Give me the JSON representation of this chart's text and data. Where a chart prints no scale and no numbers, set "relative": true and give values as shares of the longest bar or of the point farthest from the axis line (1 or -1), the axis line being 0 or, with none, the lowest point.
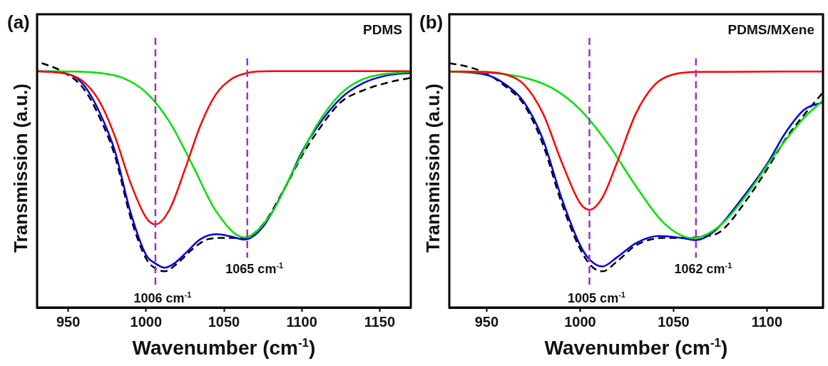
{
  "chart_data": [
    {
      "type": "line",
      "title": "(a)",
      "annotations": [
        "PDMS"
      ],
      "xlabel": "Wavenumber (cm$^{-1}$)",
      "ylabel": "Transmission (a.u.)",
      "relative": true,
      "xlim": [
        930,
        1170
      ],
      "xticks": [
        950,
        1000,
        1050,
        1100,
        1150
      ],
      "grid": false,
      "legend": false,
      "marker": "none",
      "series": [
        {
          "color": "#ff0000",
          "x": [
            930,
            950,
            960,
            970,
            980,
            990,
            1000,
            1006,
            1015,
            1025,
            1035,
            1045,
            1055,
            1065,
            1080,
            1170
          ],
          "values": [
            0.967,
            0.955,
            0.923,
            0.844,
            0.7,
            0.51,
            0.368,
            0.34,
            0.4,
            0.566,
            0.747,
            0.874,
            0.936,
            0.96,
            0.967,
            0.967
          ]
        },
        {
          "color": "#00e000",
          "x": [
            930,
            950,
            970,
            985,
            1000,
            1015,
            1030,
            1045,
            1063,
            1080,
            1095,
            1110,
            1125,
            1140,
            1170
          ],
          "values": [
            0.967,
            0.966,
            0.96,
            0.94,
            0.88,
            0.76,
            0.58,
            0.393,
            0.287,
            0.38,
            0.566,
            0.75,
            0.875,
            0.936,
            0.965
          ]
        },
        {
          "color": "#0000dd",
          "x": [
            930,
            950,
            960,
            970,
            980,
            990,
            1000,
            1006,
            1012,
            1018,
            1025,
            1035,
            1045,
            1055,
            1063,
            1075,
            1090,
            1100,
            1110,
            1125,
            1140,
            1155,
            1170
          ],
          "values": [
            0.967,
            0.955,
            0.91,
            0.8,
            0.64,
            0.39,
            0.215,
            0.18,
            0.163,
            0.18,
            0.22,
            0.28,
            0.3,
            0.29,
            0.278,
            0.33,
            0.5,
            0.636,
            0.74,
            0.856,
            0.92,
            0.95,
            0.96
          ]
        },
        {
          "color": "#000000",
          "line_style": "dashed",
          "x": [
            933,
            945,
            960,
            970,
            980,
            990,
            1000,
            1006,
            1012,
            1020,
            1030,
            1040,
            1050,
            1063,
            1075,
            1090,
            1100,
            1110,
            1125,
            1140,
            1155,
            1170
          ],
          "values": [
            1.0,
            0.97,
            0.895,
            0.78,
            0.62,
            0.37,
            0.2,
            0.16,
            0.148,
            0.18,
            0.24,
            0.28,
            0.285,
            0.285,
            0.34,
            0.5,
            0.62,
            0.72,
            0.84,
            0.89,
            0.92,
            0.94
          ]
        }
      ],
      "ref_lines": [
        {
          "axis": "x",
          "value": 1006,
          "label": "1006 cm$^{-1}$",
          "color": "#9933cc",
          "line_style": "dashed"
        },
        {
          "axis": "x",
          "value": 1065,
          "label": "1065 cm$^{-1}$",
          "color": "#9933cc",
          "line_style": "dashed"
        }
      ]
    },
    {
      "type": "line",
      "title": "(b)",
      "annotations": [
        "PDMS/MXene"
      ],
      "xlabel": "Wavenumber (cm$^{-1}$)",
      "ylabel": "Transmission (a.u.)",
      "relative": true,
      "xlim": [
        930,
        1130
      ],
      "xticks": [
        950,
        1000,
        1050,
        1100
      ],
      "grid": false,
      "legend": false,
      "marker": "none",
      "series": [
        {
          "color": "#ff0000",
          "x": [
            930,
            950,
            960,
            970,
            980,
            990,
            1000,
            1005,
            1012,
            1020,
            1030,
            1040,
            1050,
            1065,
            1130
          ],
          "values": [
            0.966,
            0.964,
            0.954,
            0.912,
            0.796,
            0.598,
            0.427,
            0.4,
            0.451,
            0.598,
            0.796,
            0.912,
            0.954,
            0.964,
            0.966
          ]
        },
        {
          "color": "#00e000",
          "x": [
            930,
            950,
            970,
            985,
            1000,
            1015,
            1030,
            1045,
            1060,
            1075,
            1090,
            1105,
            1120,
            1130
          ],
          "values": [
            0.965,
            0.961,
            0.941,
            0.898,
            0.81,
            0.669,
            0.495,
            0.344,
            0.284,
            0.336,
            0.471,
            0.635,
            0.778,
            0.847
          ]
        },
        {
          "color": "#0000dd",
          "x": [
            930,
            950,
            960,
            970,
            980,
            990,
            1000,
            1005,
            1012,
            1020,
            1030,
            1042,
            1055,
            1062,
            1072,
            1085,
            1100,
            1110,
            1120,
            1130
          ],
          "values": [
            0.966,
            0.952,
            0.913,
            0.84,
            0.69,
            0.45,
            0.255,
            0.197,
            0.168,
            0.207,
            0.264,
            0.293,
            0.284,
            0.276,
            0.313,
            0.43,
            0.587,
            0.716,
            0.81,
            0.84
          ]
        },
        {
          "color": "#000000",
          "line_style": "dashed",
          "x": [
            930,
            940,
            950,
            960,
            970,
            980,
            990,
            1000,
            1006,
            1012,
            1020,
            1030,
            1045,
            1055,
            1065,
            1075,
            1090,
            1100,
            1110,
            1120,
            1130
          ],
          "values": [
            1.0,
            0.985,
            0.957,
            0.905,
            0.83,
            0.67,
            0.43,
            0.24,
            0.17,
            0.148,
            0.19,
            0.255,
            0.285,
            0.285,
            0.29,
            0.31,
            0.45,
            0.565,
            0.69,
            0.79,
            0.88
          ]
        }
      ],
      "ref_lines": [
        {
          "axis": "x",
          "value": 1005,
          "label": "1005 cm$^{-1}$",
          "color": "#9933cc",
          "line_style": "dashed"
        },
        {
          "axis": "x",
          "value": 1062,
          "label": "1062 cm$^{-1}$",
          "color": "#9933cc",
          "line_style": "dashed"
        }
      ]
    }
  ]
}
